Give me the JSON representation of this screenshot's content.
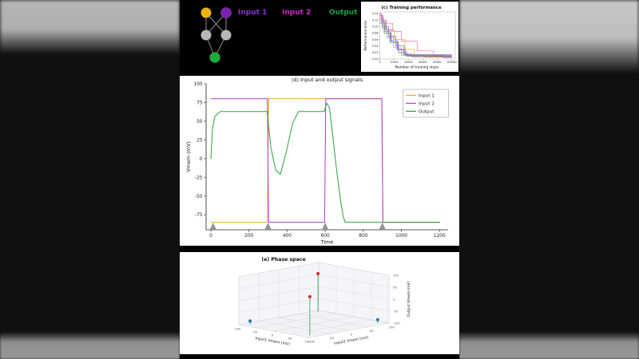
{
  "top_panel": {
    "labels": [
      {
        "text": "Input 1",
        "color": "#8b2fd6"
      },
      {
        "text": "Input 2",
        "color": "#c32cc3"
      },
      {
        "text": "Output",
        "color": "#19a13f"
      }
    ],
    "node_colors": {
      "input1": "#f0b400",
      "input2": "#7d1fb8",
      "hidden": "#b8b8b8",
      "output": "#12b036"
    },
    "edge_color": "#8f8f8f"
  },
  "chart_data": [
    {
      "id": "training",
      "type": "line",
      "title": "(c) Training performance",
      "xlabel": "Number of training steps",
      "ylabel": "Performance error",
      "xlim": [
        0,
        105000
      ],
      "ylim": [
        0,
        0.145
      ],
      "xticks": [
        0,
        20000,
        40000,
        60000,
        80000,
        100000
      ],
      "yticks": [
        0,
        0.02,
        0.04,
        0.06,
        0.08,
        0.1,
        0.12,
        0.14
      ],
      "ytick_labels": [
        "0.00",
        "0.02",
        "0.04",
        "0.06",
        "0.08",
        "0.10",
        "0.12",
        "0.14"
      ],
      "series": [
        {
          "color": "#ec6fbe",
          "points": [
            [
              0,
              0.13
            ],
            [
              5000,
              0.13
            ],
            [
              5000,
              0.11
            ],
            [
              18000,
              0.11
            ],
            [
              18000,
              0.085
            ],
            [
              30000,
              0.085
            ],
            [
              30000,
              0.055
            ],
            [
              52000,
              0.055
            ],
            [
              52000,
              0.025
            ],
            [
              75000,
              0.025
            ],
            [
              75000,
              0.01
            ],
            [
              100000,
              0.01
            ]
          ]
        },
        {
          "color": "#e9b41c",
          "points": [
            [
              0,
              0.12
            ],
            [
              8000,
              0.12
            ],
            [
              8000,
              0.09
            ],
            [
              20000,
              0.09
            ],
            [
              20000,
              0.06
            ],
            [
              35000,
              0.06
            ],
            [
              35000,
              0.03
            ],
            [
              48000,
              0.03
            ],
            [
              48000,
              0.012
            ],
            [
              62000,
              0.012
            ],
            [
              62000,
              0.006
            ],
            [
              100000,
              0.006
            ]
          ]
        },
        {
          "color": "#8d4bbf",
          "points": [
            [
              0,
              0.135
            ],
            [
              4000,
              0.135
            ],
            [
              4000,
              0.1
            ],
            [
              12000,
              0.1
            ],
            [
              12000,
              0.07
            ],
            [
              22000,
              0.07
            ],
            [
              22000,
              0.04
            ],
            [
              34000,
              0.04
            ],
            [
              34000,
              0.015
            ],
            [
              45000,
              0.015
            ],
            [
              45000,
              0.007
            ],
            [
              100000,
              0.007
            ]
          ]
        },
        {
          "color": "#3fa43f",
          "points": [
            [
              0,
              0.11
            ],
            [
              6000,
              0.11
            ],
            [
              6000,
              0.08
            ],
            [
              15000,
              0.08
            ],
            [
              15000,
              0.05
            ],
            [
              26000,
              0.05
            ],
            [
              26000,
              0.02
            ],
            [
              38000,
              0.02
            ],
            [
              38000,
              0.008
            ],
            [
              100000,
              0.008
            ]
          ]
        },
        {
          "color": "#9a9a9a",
          "points": [
            [
              0,
              0.125
            ],
            [
              3000,
              0.125
            ],
            [
              3000,
              0.095
            ],
            [
              10000,
              0.095
            ],
            [
              10000,
              0.065
            ],
            [
              19000,
              0.065
            ],
            [
              19000,
              0.035
            ],
            [
              30000,
              0.035
            ],
            [
              30000,
              0.012
            ],
            [
              100000,
              0.012
            ]
          ]
        },
        {
          "color": "#c93fc9",
          "points": [
            [
              0,
              0.14
            ],
            [
              2000,
              0.14
            ],
            [
              2000,
              0.12
            ],
            [
              9000,
              0.12
            ],
            [
              9000,
              0.09
            ],
            [
              16000,
              0.09
            ],
            [
              16000,
              0.055
            ],
            [
              25000,
              0.055
            ],
            [
              25000,
              0.028
            ],
            [
              36000,
              0.028
            ],
            [
              36000,
              0.01
            ],
            [
              88000,
              0.01
            ],
            [
              88000,
              0.005
            ],
            [
              100000,
              0.005
            ]
          ]
        },
        {
          "color": "#5b7fd4",
          "points": [
            [
              0,
              0.115
            ],
            [
              7000,
              0.115
            ],
            [
              7000,
              0.085
            ],
            [
              14000,
              0.085
            ],
            [
              14000,
              0.055
            ],
            [
              24000,
              0.055
            ],
            [
              24000,
              0.03
            ],
            [
              33000,
              0.03
            ],
            [
              33000,
              0.014
            ],
            [
              100000,
              0.014
            ]
          ]
        }
      ]
    },
    {
      "id": "vmem",
      "type": "line",
      "title": "(d) Input and output signals",
      "xlabel": "Time",
      "ylabel": "Vmem (mV)",
      "xlim": [
        -25,
        1245
      ],
      "ylim": [
        -95,
        100
      ],
      "xticks": [
        0,
        200,
        400,
        600,
        800,
        1000,
        1200
      ],
      "yticks": [
        100,
        75,
        50,
        25,
        0,
        -25,
        -50,
        -75
      ],
      "legend_entries": [
        "Input 1",
        "Input 2",
        "Output"
      ],
      "series": [
        {
          "name": "Input 1",
          "color": "#edae0d",
          "points": [
            [
              0,
              -85
            ],
            [
              297,
              -85
            ],
            [
              303,
              80
            ],
            [
              897,
              80
            ],
            [
              903,
              -85
            ],
            [
              1200,
              -85
            ]
          ]
        },
        {
          "name": "Input 2",
          "color": "#a93ec9",
          "points": [
            [
              0,
              80
            ],
            [
              297,
              80
            ],
            [
              303,
              -85
            ],
            [
              597,
              -85
            ],
            [
              603,
              80
            ],
            [
              897,
              80
            ],
            [
              903,
              -85
            ],
            [
              1200,
              -85
            ]
          ]
        },
        {
          "name": "Output",
          "color": "#2f9e3f",
          "points": [
            [
              0,
              0
            ],
            [
              8,
              38
            ],
            [
              20,
              56
            ],
            [
              50,
              63
            ],
            [
              295,
              63
            ],
            [
              315,
              15
            ],
            [
              340,
              -15
            ],
            [
              365,
              -21
            ],
            [
              395,
              8
            ],
            [
              430,
              48
            ],
            [
              460,
              63
            ],
            [
              595,
              63
            ],
            [
              608,
              74
            ],
            [
              622,
              68
            ],
            [
              640,
              30
            ],
            [
              660,
              -15
            ],
            [
              680,
              -55
            ],
            [
              695,
              -78
            ],
            [
              705,
              -85
            ],
            [
              1200,
              -85
            ]
          ]
        }
      ],
      "markers": {
        "color": "#969696",
        "times": [
          12,
          300,
          600,
          900
        ],
        "y": -85
      }
    },
    {
      "id": "phase",
      "type": "scatter3d",
      "title": "(e) Phase space",
      "xlabel": "Input1 Vmem (mV)",
      "ylabel": "Input2 Vmem (mV)",
      "zlabel": "Output Vmem (mV)",
      "ticks": [
        -100,
        -50,
        0,
        50,
        100
      ],
      "stem_color": "#2f9e3f",
      "points": [
        {
          "x": -85,
          "y": 85,
          "z": 62,
          "color": "#d62728"
        },
        {
          "x": 85,
          "y": -85,
          "z": 62,
          "color": "#d62728"
        },
        {
          "x": -85,
          "y": -85,
          "z": -85,
          "color": "#1f77b4"
        },
        {
          "x": 85,
          "y": 85,
          "z": -85,
          "color": "#1f77b4"
        }
      ]
    }
  ]
}
